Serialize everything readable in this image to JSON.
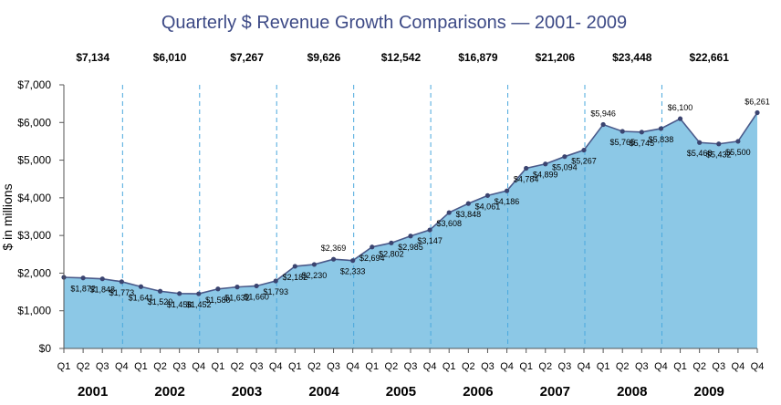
{
  "chart_data": {
    "type": "area",
    "title": "Quarterly $ Revenue Growth Comparisons — 2001- 2009",
    "ylabel": "$ in millions",
    "xlabel": "",
    "ylim": [
      0,
      7000
    ],
    "yticks": [
      "$0",
      "$1,000",
      "$2,000",
      "$3,000",
      "$4,000",
      "$5,000",
      "$6,000",
      "$7,000"
    ],
    "quarter_labels": [
      "Q1",
      "Q2",
      "Q3",
      "Q4"
    ],
    "years": [
      "2001",
      "2002",
      "2003",
      "2004",
      "2005",
      "2006",
      "2007",
      "2008",
      "2009"
    ],
    "annual_totals": [
      "$7,134",
      "$6,010",
      "$7,267",
      "$9,626",
      "$12,542",
      "$16,879",
      "$21,206",
      "$23,448",
      "$22,661"
    ],
    "values": [
      1889,
      1872,
      1848,
      1773,
      1641,
      1520,
      1458,
      1452,
      1580,
      1632,
      1660,
      1793,
      2182,
      2230,
      2369,
      2333,
      2694,
      2802,
      2985,
      3147,
      3608,
      3848,
      4061,
      4186,
      4784,
      4899,
      5094,
      5267,
      5946,
      5765,
      5745,
      5838,
      6100,
      5468,
      5432,
      5500,
      6261
    ],
    "data_labels": [
      "",
      "$1,872",
      "$1,848",
      "$1,773",
      "$1,641",
      "$1,520",
      "$1,458",
      "$1,452",
      "$1,580",
      "$1,632",
      "$1,660",
      "$1,793",
      "$2,182",
      "$2,230",
      "$2,369",
      "$2,333",
      "$2,694",
      "$2,802",
      "$2,985",
      "$3,147",
      "$3,608",
      "$3,848",
      "$4,061",
      "$4,186",
      "$4,784",
      "$4,899",
      "$5,094",
      "$5,267",
      "$5,946",
      "$5,765",
      "$5,745",
      "$5,838",
      "$6,100",
      "$5,468",
      "$5,432",
      "$5,500",
      "$6,261"
    ],
    "grid": false,
    "colors": {
      "area": "#8cc8e6",
      "line": "#4a5a8a",
      "marker": "#3b4470",
      "divider": "#4aa8dd",
      "title": "#3d4a86"
    }
  }
}
